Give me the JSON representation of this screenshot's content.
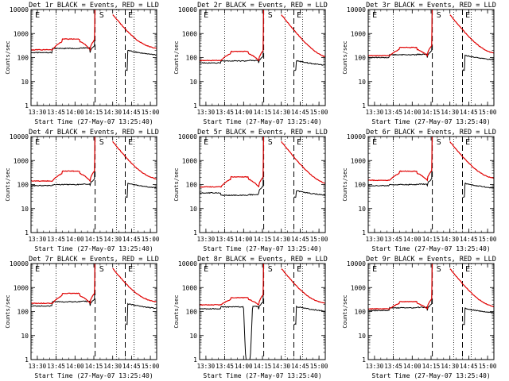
{
  "chart_data": {
    "type": "line",
    "yscale": "log",
    "ylim": [
      1,
      10000
    ],
    "y_ticks": [
      1,
      10,
      100,
      1000,
      10000
    ],
    "xlim_minutes": [
      -5,
      95
    ],
    "x_tick_minutes": [
      0,
      15,
      30,
      45,
      60,
      75,
      90
    ],
    "x_tick_labels": [
      "13:30",
      "13:45",
      "14:00",
      "14:15",
      "14:30",
      "14:45",
      "15:00"
    ],
    "ylabel": "Counts/sec",
    "xlabel": "Start Time (27-May-07 13:25:40)",
    "dotted_lines_minutes": [
      15,
      63,
      77
    ],
    "dashed_lines_minutes": [
      46,
      70
    ],
    "markers": [
      {
        "label": "E",
        "minute": -3
      },
      {
        "label": "S",
        "minute": 48
      },
      {
        "label": "E",
        "minute": 71
      }
    ],
    "series_styles": [
      {
        "name": "Events",
        "color": "#000000"
      },
      {
        "name": "LLD",
        "color": "#e00000"
      }
    ],
    "panels": [
      {
        "title": "Det 1r BLACK = Events, RED = LLD",
        "ev": 160,
        "lld": 210,
        "bump": 2.8,
        "ev_bump": 1.5,
        "dip": false
      },
      {
        "title": "Det 2r BLACK = Events, RED = LLD",
        "ev": 60,
        "lld": 75,
        "bump": 2.4,
        "ev_bump": 1.2,
        "dip": false
      },
      {
        "title": "Det 3r BLACK = Events, RED = LLD",
        "ev": 100,
        "lld": 120,
        "bump": 2.2,
        "ev_bump": 1.3,
        "dip": false
      },
      {
        "title": "Det 4r BLACK = Events, RED = LLD",
        "ev": 90,
        "lld": 140,
        "bump": 2.6,
        "ev_bump": 1.1,
        "dip": false
      },
      {
        "title": "Det 5r BLACK = Events, RED = LLD",
        "ev": 45,
        "lld": 80,
        "bump": 2.6,
        "ev_bump": 0.8,
        "dip": false
      },
      {
        "title": "Det 6r BLACK = Events, RED = LLD",
        "ev": 90,
        "lld": 150,
        "bump": 2.4,
        "ev_bump": 1.1,
        "dip": false
      },
      {
        "title": "Det 7r BLACK = Events, RED = LLD",
        "ev": 170,
        "lld": 220,
        "bump": 2.6,
        "ev_bump": 1.5,
        "dip": false
      },
      {
        "title": "Det 8r BLACK = Events, RED = LLD",
        "ev": 130,
        "lld": 190,
        "bump": 2.0,
        "ev_bump": 1.2,
        "dip": true
      },
      {
        "title": "Det 9r BLACK = Events, RED = LLD",
        "ev": 110,
        "lld": 130,
        "bump": 2.0,
        "ev_bump": 1.3,
        "dip": false
      }
    ]
  }
}
